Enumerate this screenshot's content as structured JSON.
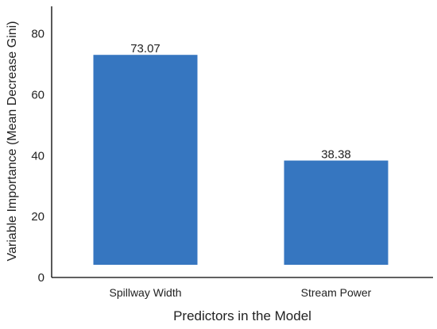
{
  "chart_data": {
    "type": "bar",
    "title": "",
    "xlabel": "Predictors in the Model",
    "ylabel": "Variable Importance (Mean Decrease Gini)",
    "categories": [
      "Spillway Width",
      "Stream Power"
    ],
    "values": [
      73.07,
      38.38
    ],
    "value_labels": [
      "73.07",
      "38.38"
    ],
    "ylim": [
      0,
      89
    ],
    "yticks": [
      0,
      20,
      40,
      60,
      80
    ],
    "ytick_labels": [
      "0",
      "20",
      "40",
      "60",
      "80"
    ],
    "grid": false,
    "legend": "none",
    "bar_color": "#3676C0",
    "axis_color": "#000000"
  }
}
